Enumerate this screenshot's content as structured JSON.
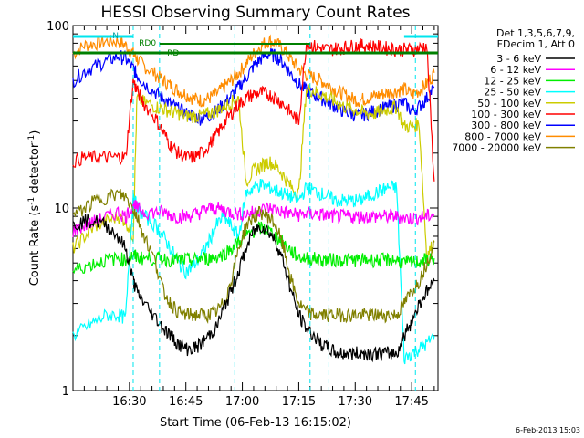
{
  "chart_data": {
    "type": "line",
    "title": "HESSI Observing Summary Count Rates",
    "xlabel": "Start Time (06-Feb-13 16:15:02)",
    "ylabel_text": "Count Rate (s",
    "ylabel_sup": "-1",
    "ylabel_end": " detector",
    "ylabel_sup2": "-1",
    "ylabel_close": ")",
    "timestamp": "6-Feb-2013 15:03",
    "yscale": "log",
    "ylim": [
      1,
      100
    ],
    "y_tick_labels": [
      "1",
      "10",
      "100"
    ],
    "xlim_minutes": [
      0,
      97
    ],
    "x_ticks": [
      {
        "min": 15,
        "label": "16:30"
      },
      {
        "min": 30,
        "label": "16:45"
      },
      {
        "min": 45,
        "label": "17:00"
      },
      {
        "min": 60,
        "label": "17:15"
      },
      {
        "min": 75,
        "label": "17:30"
      },
      {
        "min": 90,
        "label": "17:45"
      }
    ],
    "legend": {
      "header1": "Det 1,3,5,6,7,9,",
      "header2": "FDecim 1, Att 0",
      "entries": [
        {
          "label": "3 - 6 keV",
          "color": "#000000"
        },
        {
          "label": "6 - 12 keV",
          "color": "#ff00ff"
        },
        {
          "label": "12 - 25 keV",
          "color": "#00ee00"
        },
        {
          "label": "25 - 50 keV",
          "color": "#00ffff"
        },
        {
          "label": "50 - 100 keV",
          "color": "#cccc00"
        },
        {
          "label": "100 - 300 keV",
          "color": "#ff0000"
        },
        {
          "label": "300 - 800 keV",
          "color": "#0000ff"
        },
        {
          "label": "800 - 7000 keV",
          "color": "#ff8c00"
        },
        {
          "label": "7000 - 20000 keV",
          "color": "#808000"
        }
      ]
    },
    "flags": {
      "saa_label": "RD0",
      "n_label": "N",
      "rd_label": "RD"
    },
    "night_bars": [
      [
        -1,
        16
      ],
      [
        88,
        97
      ]
    ],
    "data_gaps_minutes": [
      16,
      23,
      43,
      63,
      68,
      91
    ],
    "series": [
      {
        "name": "800 - 7000 keV",
        "color": "#ff8c00",
        "x": [
          0,
          3,
          6,
          9,
          12,
          14,
          16,
          17,
          19,
          22,
          24,
          26,
          28,
          30,
          32,
          34,
          36,
          38,
          40,
          42,
          44,
          46,
          48,
          50,
          52,
          54,
          56,
          58,
          60,
          62,
          64,
          66,
          68,
          70,
          72,
          74,
          76,
          78,
          80,
          82,
          84,
          86,
          88,
          90,
          92,
          94,
          96
        ],
        "y": [
          70,
          78,
          80,
          82,
          82,
          78,
          70,
          66,
          60,
          54,
          50,
          47,
          44,
          42,
          40,
          39,
          40,
          42,
          46,
          50,
          55,
          62,
          70,
          78,
          83,
          80,
          74,
          65,
          58,
          54,
          52,
          50,
          47,
          44,
          42,
          40,
          39,
          40,
          41,
          42,
          43,
          44,
          45,
          42,
          44,
          48,
          55
        ]
      },
      {
        "name": "300 - 800 keV",
        "color": "#0000ff",
        "x": [
          0,
          3,
          6,
          9,
          12,
          14,
          16,
          17,
          19,
          22,
          24,
          26,
          28,
          30,
          32,
          34,
          36,
          38,
          40,
          42,
          44,
          46,
          48,
          50,
          52,
          54,
          56,
          58,
          60,
          62,
          64,
          66,
          68,
          70,
          72,
          74,
          76,
          78,
          80,
          82,
          84,
          86,
          88,
          90,
          92,
          94,
          96
        ],
        "y": [
          50,
          56,
          60,
          64,
          68,
          66,
          58,
          54,
          48,
          43,
          40,
          37,
          35,
          33,
          32,
          31,
          32,
          34,
          37,
          41,
          46,
          52,
          60,
          66,
          70,
          68,
          62,
          54,
          48,
          44,
          42,
          40,
          38,
          36,
          34,
          33,
          32,
          33,
          34,
          35,
          36,
          37,
          38,
          34,
          36,
          40,
          46
        ]
      },
      {
        "name": "50 - 100 keV",
        "color": "#cccc00",
        "x": [
          0,
          3,
          6,
          9,
          12,
          14,
          16,
          17,
          19,
          22,
          24,
          26,
          28,
          30,
          32,
          34,
          36,
          38,
          40,
          42,
          44,
          46,
          48,
          50,
          52,
          54,
          56,
          58,
          60,
          62,
          64,
          66,
          68,
          70,
          72,
          74,
          76,
          78,
          80,
          82,
          84,
          86,
          88,
          90,
          92,
          94,
          96
        ],
        "y": [
          6,
          7,
          8,
          8.5,
          9,
          8.5,
          7,
          40,
          38,
          36,
          35,
          34,
          33,
          32,
          32,
          32,
          33,
          34,
          36,
          38,
          40,
          14,
          16,
          17,
          18,
          17,
          15,
          13,
          12,
          45,
          44,
          42,
          40,
          38,
          36,
          35,
          34,
          33,
          33,
          34,
          35,
          36,
          28,
          28,
          29,
          5.5,
          6.5
        ]
      },
      {
        "name": "100 - 300 keV",
        "color": "#ff0000",
        "x": [
          0,
          3,
          6,
          9,
          12,
          14,
          16,
          17,
          19,
          22,
          24,
          26,
          28,
          30,
          32,
          34,
          36,
          38,
          40,
          42,
          44,
          46,
          48,
          50,
          52,
          54,
          56,
          58,
          60,
          62,
          64,
          66,
          68,
          70,
          72,
          74,
          76,
          78,
          80,
          82,
          84,
          86,
          88,
          90,
          92,
          94,
          96
        ],
        "y": [
          18,
          19,
          19,
          19,
          19,
          19,
          50,
          44,
          37,
          31,
          26,
          22,
          20,
          19,
          19,
          20,
          22,
          25,
          29,
          33,
          37,
          40,
          42,
          43,
          42,
          40,
          37,
          33,
          30,
          80,
          77,
          75,
          74,
          75,
          76,
          77,
          78,
          78,
          77,
          76,
          75,
          74,
          74,
          74,
          75,
          78,
          14
        ]
      },
      {
        "name": "25 - 50 keV",
        "color": "#00ffff",
        "x": [
          0,
          3,
          6,
          9,
          12,
          14,
          16,
          17,
          19,
          22,
          24,
          26,
          28,
          30,
          32,
          34,
          36,
          38,
          40,
          42,
          44,
          46,
          48,
          50,
          52,
          54,
          56,
          58,
          60,
          62,
          64,
          66,
          68,
          70,
          72,
          74,
          76,
          78,
          80,
          82,
          84,
          86,
          88,
          90,
          92,
          94,
          96
        ],
        "y": [
          2,
          2.2,
          2.4,
          2.6,
          2.6,
          2.5,
          12,
          10,
          9,
          8,
          7,
          6,
          5,
          4.5,
          4.8,
          5.5,
          6.5,
          8,
          9,
          8,
          7,
          12,
          13,
          13.5,
          13,
          12.5,
          12,
          11.5,
          11,
          13,
          12.5,
          12,
          11.5,
          11,
          11,
          11,
          11,
          11.5,
          12,
          12.5,
          13,
          13,
          1.5,
          1.6,
          1.7,
          1.8,
          2
        ]
      },
      {
        "name": "6 - 12 keV",
        "color": "#ff00ff",
        "x": [
          0,
          3,
          6,
          9,
          12,
          14,
          16,
          17,
          19,
          22,
          24,
          26,
          28,
          30,
          32,
          34,
          36,
          38,
          40,
          42,
          44,
          46,
          48,
          50,
          52,
          54,
          56,
          58,
          60,
          62,
          64,
          66,
          68,
          70,
          72,
          74,
          76,
          78,
          80,
          82,
          84,
          86,
          88,
          90,
          92,
          94,
          96
        ],
        "y": [
          7.5,
          8,
          8.5,
          9,
          9.5,
          9,
          10.5,
          10,
          9.5,
          9.5,
          9.5,
          9.2,
          9,
          9,
          9.2,
          9.5,
          10,
          10,
          9.8,
          9.5,
          9.3,
          9.3,
          9.5,
          9.8,
          10,
          9.8,
          9.5,
          9.3,
          9.2,
          9.3,
          9.3,
          9.2,
          9.1,
          9,
          9,
          9,
          9,
          9,
          9,
          9,
          9,
          9,
          8.8,
          8.8,
          8.9,
          9,
          9.3
        ]
      },
      {
        "name": "12 - 25 keV",
        "color": "#00ee00",
        "x": [
          0,
          3,
          6,
          9,
          12,
          14,
          16,
          17,
          19,
          22,
          24,
          26,
          28,
          30,
          32,
          34,
          36,
          38,
          40,
          42,
          44,
          46,
          48,
          50,
          52,
          54,
          56,
          58,
          60,
          62,
          64,
          66,
          68,
          70,
          72,
          74,
          76,
          78,
          80,
          82,
          84,
          86,
          88,
          90,
          92,
          94,
          96
        ],
        "y": [
          4.5,
          4.8,
          5,
          5.2,
          5.3,
          5.2,
          5.5,
          5.4,
          5.3,
          5.3,
          5.3,
          5.2,
          5.2,
          5.2,
          5.2,
          5.3,
          5.3,
          5.4,
          5.6,
          6,
          6.5,
          7,
          7.5,
          7.8,
          7.5,
          7,
          6.4,
          5.8,
          5.4,
          5.3,
          5.3,
          5.2,
          5.2,
          5.2,
          5.2,
          5.2,
          5.2,
          5.2,
          5.2,
          5.2,
          5.2,
          5.2,
          5,
          5,
          5.1,
          5.2,
          5.3
        ]
      },
      {
        "name": "7000 - 20000 keV",
        "color": "#808000",
        "x": [
          0,
          3,
          6,
          9,
          12,
          14,
          16,
          17,
          19,
          22,
          24,
          26,
          28,
          30,
          32,
          34,
          36,
          38,
          40,
          42,
          44,
          46,
          48,
          50,
          52,
          54,
          56,
          58,
          60,
          62,
          64,
          66,
          68,
          70,
          72,
          74,
          76,
          78,
          80,
          82,
          84,
          86,
          88,
          90,
          92,
          94,
          96
        ],
        "y": [
          9,
          10,
          11,
          11.5,
          12,
          11.5,
          10,
          9,
          7,
          5,
          3.5,
          3,
          2.7,
          2.6,
          2.6,
          2.6,
          2.6,
          2.7,
          3,
          4,
          6,
          8,
          9,
          9.5,
          9,
          8,
          6,
          4,
          3,
          2.7,
          2.6,
          2.6,
          2.6,
          2.6,
          2.6,
          2.6,
          2.6,
          2.6,
          2.6,
          2.6,
          2.6,
          2.6,
          3,
          3.5,
          4,
          5,
          6.5
        ]
      },
      {
        "name": "3 - 6 keV",
        "color": "#000000",
        "x": [
          0,
          3,
          6,
          9,
          12,
          14,
          16,
          17,
          19,
          22,
          24,
          26,
          28,
          30,
          32,
          34,
          36,
          38,
          40,
          42,
          44,
          46,
          48,
          50,
          52,
          54,
          56,
          58,
          60,
          62,
          64,
          66,
          68,
          70,
          72,
          74,
          76,
          78,
          80,
          82,
          84,
          86,
          88,
          90,
          92,
          94,
          96
        ],
        "y": [
          8,
          8.5,
          8.5,
          8,
          7,
          6,
          4,
          3.5,
          3,
          2.5,
          2.2,
          2,
          1.8,
          1.7,
          1.7,
          1.8,
          2,
          2.2,
          2.8,
          3.5,
          4.5,
          6,
          7.5,
          8,
          7.5,
          6.5,
          5,
          3.5,
          2.6,
          2.2,
          2,
          1.8,
          1.7,
          1.6,
          1.6,
          1.6,
          1.6,
          1.6,
          1.6,
          1.6,
          1.6,
          1.6,
          2,
          2.4,
          3,
          3.5,
          4
        ]
      }
    ]
  }
}
